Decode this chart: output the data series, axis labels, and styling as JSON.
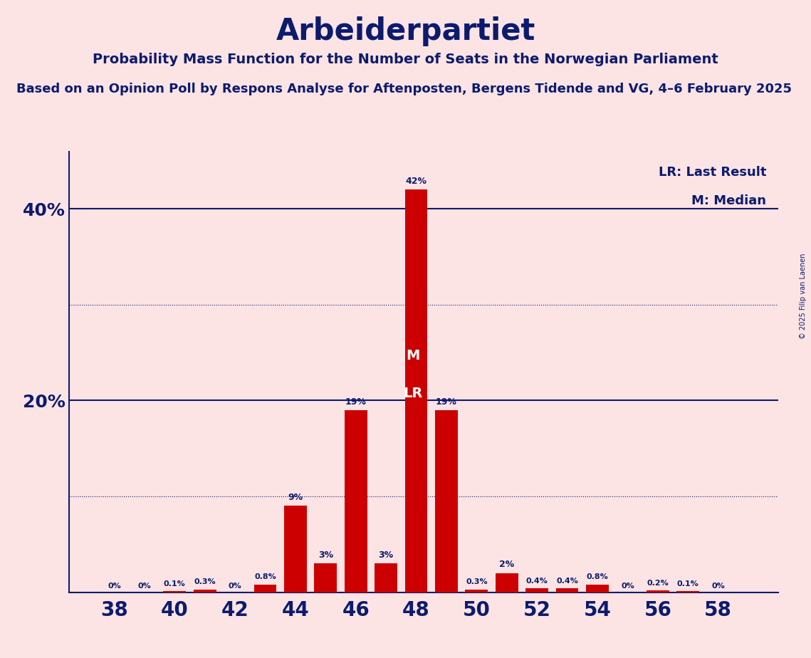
{
  "title": "Arbeiderpartiet",
  "subtitle1": "Probability Mass Function for the Number of Seats in the Norwegian Parliament",
  "subtitle2": "Based on an Opinion Poll by Respons Analyse for Aftenposten, Bergens Tidende and VG, 4–6 February 2025",
  "copyright": "© 2025 Filip van Laenen",
  "background_color": "#fce4e4",
  "bar_color": "#cc0000",
  "title_color": "#0d1b6e",
  "seats": [
    38,
    39,
    40,
    41,
    42,
    43,
    44,
    45,
    46,
    47,
    48,
    49,
    50,
    51,
    52,
    53,
    54,
    55,
    56,
    57,
    58
  ],
  "probs": [
    0.0,
    0.0,
    0.1,
    0.3,
    0.0,
    0.8,
    9.0,
    3.0,
    19.0,
    3.0,
    42.0,
    19.0,
    0.3,
    2.0,
    0.4,
    0.4,
    0.8,
    0.0,
    0.2,
    0.1,
    0.0
  ],
  "labels": [
    "0%",
    "0%",
    "0.1%",
    "0.3%",
    "0%",
    "0.8%",
    "9%",
    "3%",
    "19%",
    "3%",
    "42%",
    "19%",
    "0.3%",
    "2%",
    "0.4%",
    "0.4%",
    "0.8%",
    "0%",
    "0.2%",
    "0.1%",
    "0%"
  ],
  "median_seat": 48,
  "lr_seat": 48,
  "xlim": [
    36.5,
    60.0
  ],
  "ylim": [
    0,
    46
  ],
  "xticks": [
    38,
    40,
    42,
    44,
    46,
    48,
    50,
    52,
    54,
    56,
    58
  ],
  "ytick_positions": [
    0,
    10,
    20,
    30,
    40
  ],
  "ytick_labels": [
    "",
    "",
    "20%",
    "",
    "40%"
  ],
  "dotted_grid_values": [
    10,
    30
  ],
  "solid_grid_values": [
    20,
    40
  ],
  "bar_width": 0.75
}
